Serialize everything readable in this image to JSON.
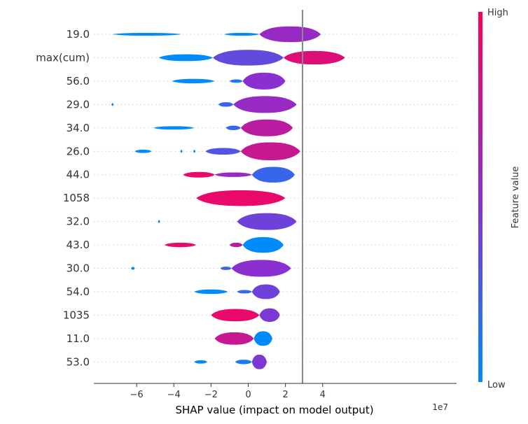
{
  "chart_data": {
    "type": "violin",
    "xlabel": "SHAP value (impact on model output)",
    "x_offset_label": "1e7",
    "xlim": [
      -8.3,
      11.2
    ],
    "xticks": [
      -6,
      -4,
      -2,
      0,
      2,
      4
    ],
    "xtick_labels": [
      "−6",
      "−4",
      "−2",
      "0",
      "2",
      "4"
    ],
    "colorbar": {
      "label": "Feature value",
      "high_label": "High",
      "low_label": "Low",
      "low_color": "#008bfb",
      "mid_color": "#8a2fd0",
      "high_color": "#ff0052"
    },
    "features": [
      {
        "name": "19.0",
        "segments": [
          {
            "x": [
              -7.3,
              -3.6
            ],
            "w": 0.1,
            "v": 0.0
          },
          {
            "x": [
              -1.3,
              0.6
            ],
            "w": 0.1,
            "v": 0.0
          },
          {
            "x": [
              0.6,
              3.9
            ],
            "w": 0.7,
            "v": 0.55
          }
        ]
      },
      {
        "name": "max(cum)",
        "segments": [
          {
            "x": [
              -4.8,
              -1.9
            ],
            "w": 0.3,
            "v": 0.0
          },
          {
            "x": [
              -1.9,
              1.9
            ],
            "w": 0.7,
            "v": 0.35
          },
          {
            "x": [
              1.9,
              5.2
            ],
            "w": 0.6,
            "v": 0.85
          }
        ]
      },
      {
        "name": "56.0",
        "segments": [
          {
            "x": [
              -4.1,
              -1.8
            ],
            "w": 0.2,
            "v": 0.0
          },
          {
            "x": [
              -1.0,
              -0.3
            ],
            "w": 0.15,
            "v": 0.1
          },
          {
            "x": [
              -0.3,
              2.0
            ],
            "w": 0.75,
            "v": 0.5
          }
        ]
      },
      {
        "name": "29.0",
        "segments": [
          {
            "x": [
              -7.35,
              -7.25
            ],
            "w": 0.1,
            "v": 0.0
          },
          {
            "x": [
              -1.6,
              -0.8
            ],
            "w": 0.2,
            "v": 0.2
          },
          {
            "x": [
              -0.8,
              2.6
            ],
            "w": 0.75,
            "v": 0.55
          }
        ]
      },
      {
        "name": "34.0",
        "segments": [
          {
            "x": [
              -5.1,
              -2.9
            ],
            "w": 0.15,
            "v": 0.0
          },
          {
            "x": [
              -1.2,
              -0.4
            ],
            "w": 0.2,
            "v": 0.2
          },
          {
            "x": [
              -0.4,
              2.4
            ],
            "w": 0.75,
            "v": 0.7
          }
        ]
      },
      {
        "name": "26.0",
        "segments": [
          {
            "x": [
              -6.1,
              -5.2
            ],
            "w": 0.15,
            "v": 0.0
          },
          {
            "x": [
              -3.65,
              -3.55
            ],
            "w": 0.1,
            "v": 0.0
          },
          {
            "x": [
              -2.95,
              -2.85
            ],
            "w": 0.1,
            "v": 0.0
          },
          {
            "x": [
              -2.3,
              -0.4
            ],
            "w": 0.3,
            "v": 0.3
          },
          {
            "x": [
              -0.4,
              2.8
            ],
            "w": 0.8,
            "v": 0.75
          }
        ]
      },
      {
        "name": "44.0",
        "segments": [
          {
            "x": [
              -3.5,
              -1.8
            ],
            "w": 0.25,
            "v": 0.9
          },
          {
            "x": [
              -1.8,
              0.2
            ],
            "w": 0.2,
            "v": 0.55
          },
          {
            "x": [
              0.2,
              2.5
            ],
            "w": 0.7,
            "v": 0.2
          }
        ]
      },
      {
        "name": "1058",
        "segments": [
          {
            "x": [
              -2.8,
              2.0
            ],
            "w": 0.7,
            "v": 0.9
          }
        ]
      },
      {
        "name": "32.0",
        "segments": [
          {
            "x": [
              -4.85,
              -4.75
            ],
            "w": 0.1,
            "v": 0.0
          },
          {
            "x": [
              -0.6,
              2.6
            ],
            "w": 0.75,
            "v": 0.4
          }
        ]
      },
      {
        "name": "43.0",
        "segments": [
          {
            "x": [
              -4.5,
              -2.8
            ],
            "w": 0.2,
            "v": 0.9
          },
          {
            "x": [
              -1.0,
              -0.3
            ],
            "w": 0.2,
            "v": 0.7
          },
          {
            "x": [
              -0.3,
              1.9
            ],
            "w": 0.7,
            "v": 0.0
          }
        ]
      },
      {
        "name": "30.0",
        "segments": [
          {
            "x": [
              -6.3,
              -6.1
            ],
            "w": 0.1,
            "v": 0.0
          },
          {
            "x": [
              -1.5,
              -0.9
            ],
            "w": 0.15,
            "v": 0.2
          },
          {
            "x": [
              -0.9,
              2.3
            ],
            "w": 0.75,
            "v": 0.5
          }
        ]
      },
      {
        "name": "54.0",
        "segments": [
          {
            "x": [
              -2.9,
              -1.1
            ],
            "w": 0.2,
            "v": 0.0
          },
          {
            "x": [
              -0.6,
              0.2
            ],
            "w": 0.15,
            "v": 0.2
          },
          {
            "x": [
              0.2,
              1.7
            ],
            "w": 0.65,
            "v": 0.4
          }
        ]
      },
      {
        "name": "1035",
        "segments": [
          {
            "x": [
              -2.0,
              0.6
            ],
            "w": 0.55,
            "v": 0.9
          },
          {
            "x": [
              0.6,
              1.7
            ],
            "w": 0.6,
            "v": 0.45
          }
        ]
      },
      {
        "name": "11.0",
        "segments": [
          {
            "x": [
              -1.8,
              0.3
            ],
            "w": 0.55,
            "v": 0.75
          },
          {
            "x": [
              0.3,
              1.3
            ],
            "w": 0.65,
            "v": 0.0
          }
        ]
      },
      {
        "name": "53.0",
        "segments": [
          {
            "x": [
              -2.9,
              -2.2
            ],
            "w": 0.15,
            "v": 0.0
          },
          {
            "x": [
              -0.7,
              0.2
            ],
            "w": 0.2,
            "v": 0.1
          },
          {
            "x": [
              0.2,
              1.0
            ],
            "w": 0.65,
            "v": 0.45
          }
        ]
      }
    ]
  }
}
